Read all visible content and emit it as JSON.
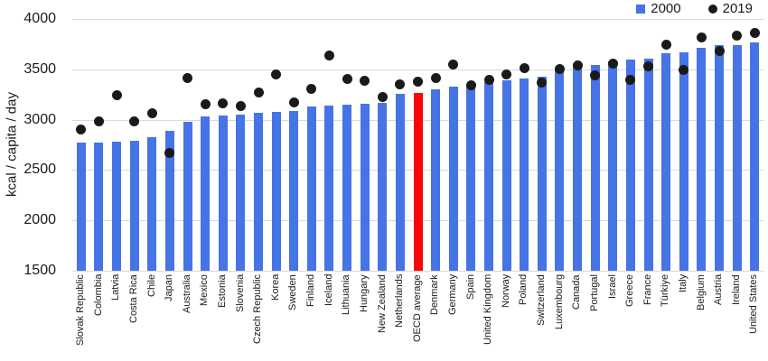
{
  "chart_data": {
    "type": "bar",
    "title": "",
    "ylabel": "kcal / capita / day",
    "xlabel": "",
    "ylim": [
      1500,
      4000
    ],
    "ytick_interval": 500,
    "grid": true,
    "legend_position": "top-right",
    "categories": [
      "Slovak Republic",
      "Colombia",
      "Latvia",
      "Costa Rica",
      "Chile",
      "Japan",
      "Australia",
      "Mexico",
      "Estonia",
      "Slovenia",
      "Czech Republic",
      "Korea",
      "Sweden",
      "Finland",
      "Iceland",
      "Lithuania",
      "Hungary",
      "New Zealand",
      "Netherlands",
      "OECD average",
      "Denmark",
      "Germany",
      "Spain",
      "United Kingdom",
      "Norway",
      "Poland",
      "Switzerland",
      "Luxembourg",
      "Canada",
      "Portugal",
      "Israel",
      "Greece",
      "France",
      "Türkiye",
      "Italy",
      "Belgium",
      "Austria",
      "Ireland",
      "United States"
    ],
    "series": [
      {
        "name": "2000",
        "type": "bar",
        "color": "#4673e6",
        "values": [
          2770,
          2775,
          2780,
          2790,
          2830,
          2885,
          2980,
          3030,
          3040,
          3050,
          3065,
          3080,
          3090,
          3135,
          3140,
          3150,
          3160,
          3170,
          3255,
          3265,
          3300,
          3330,
          3345,
          3370,
          3390,
          3410,
          3430,
          3500,
          3530,
          3545,
          3575,
          3600,
          3605,
          3660,
          3670,
          3710,
          3740,
          3745,
          3765
        ]
      },
      {
        "name": "2019",
        "type": "scatter",
        "color": "#1a1a1a",
        "values": [
          2900,
          2985,
          3245,
          2980,
          3065,
          2670,
          3415,
          3150,
          3160,
          3140,
          3270,
          3450,
          3170,
          3310,
          3640,
          3405,
          3385,
          3225,
          3355,
          3380,
          3415,
          3550,
          3340,
          3400,
          3450,
          3510,
          3370,
          3505,
          3540,
          3440,
          3560,
          3395,
          3530,
          3745,
          3495,
          3815,
          3685,
          3835,
          3860
        ]
      }
    ],
    "highlight": {
      "category": "OECD average",
      "series": "2000",
      "color": "#fb0505"
    },
    "gridline_color": "#d9d9d9"
  }
}
